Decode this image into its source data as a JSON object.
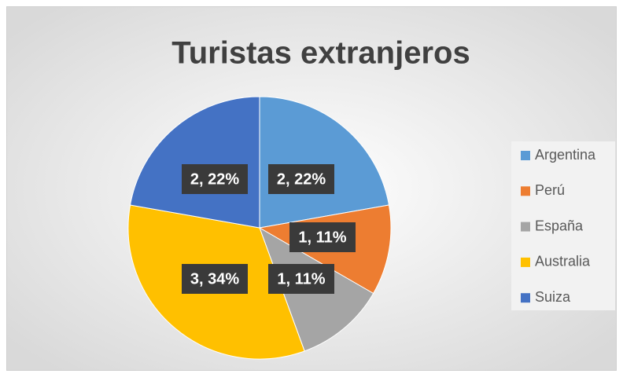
{
  "chart_data": {
    "type": "pie",
    "title": "Turistas extranjeros",
    "categories": [
      "Argentina",
      "Perú",
      "España",
      "Australia",
      "Suiza"
    ],
    "values": [
      2,
      1,
      1,
      3,
      2
    ],
    "value_labels": [
      "2, 22%",
      "1, 11%",
      "1, 11%",
      "3, 34%",
      "2, 22%"
    ],
    "colors": [
      "#5b9bd5",
      "#ed7d31",
      "#a5a5a5",
      "#ffc000",
      "#4472c4"
    ],
    "legend": "right"
  }
}
